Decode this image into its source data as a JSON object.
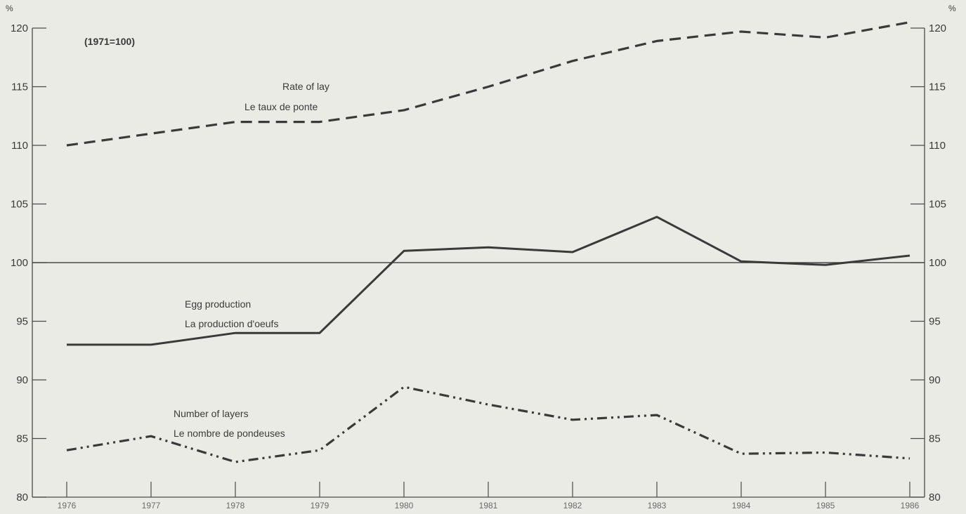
{
  "chart_data": {
    "type": "line",
    "note": "(1971=100)",
    "y_unit_left": "%",
    "y_unit_right": "%",
    "x": [
      "1976",
      "1977",
      "1978",
      "1979",
      "1980",
      "1981",
      "1982",
      "1983",
      "1984",
      "1985",
      "1986"
    ],
    "x_tick_labels": [
      "1976",
      "1977",
      "1978",
      "1979",
      "1980",
      "1981",
      "1982",
      "1983",
      "1984",
      "1985",
      "1986"
    ],
    "ylim": [
      80,
      120
    ],
    "y_ticks": [
      80,
      85,
      90,
      95,
      100,
      105,
      110,
      115,
      120
    ],
    "y_tick_labels": [
      "80",
      "85",
      "90",
      "95",
      "100",
      "105",
      "110",
      "115",
      "120"
    ],
    "reference_line": 100,
    "grid": false,
    "legend": "inline labels next to lines",
    "series": [
      {
        "name": "Rate of lay",
        "label_lines": [
          "Rate of lay",
          "Le taux de ponte"
        ],
        "style": "dashed",
        "color": "#3a3a3a",
        "values": [
          110,
          111,
          112,
          112,
          113,
          115,
          117.2,
          118.9,
          119.7,
          119.2,
          120.5
        ]
      },
      {
        "name": "Egg production",
        "label_lines": [
          "Egg production",
          "La production d'oeufs"
        ],
        "style": "solid",
        "color": "#3a3a3a",
        "values": [
          93,
          93,
          94,
          94,
          101,
          101.3,
          100.9,
          103.9,
          100.1,
          99.8,
          100.6
        ]
      },
      {
        "name": "Number of layers",
        "label_lines": [
          "Number of layers",
          "Le nombre de pondeuses"
        ],
        "style": "dash-dot-dot",
        "color": "#3a3a3a",
        "values": [
          84,
          85.2,
          83,
          84,
          89.4,
          87.9,
          86.6,
          87,
          83.7,
          83.8,
          83.3
        ]
      }
    ]
  }
}
